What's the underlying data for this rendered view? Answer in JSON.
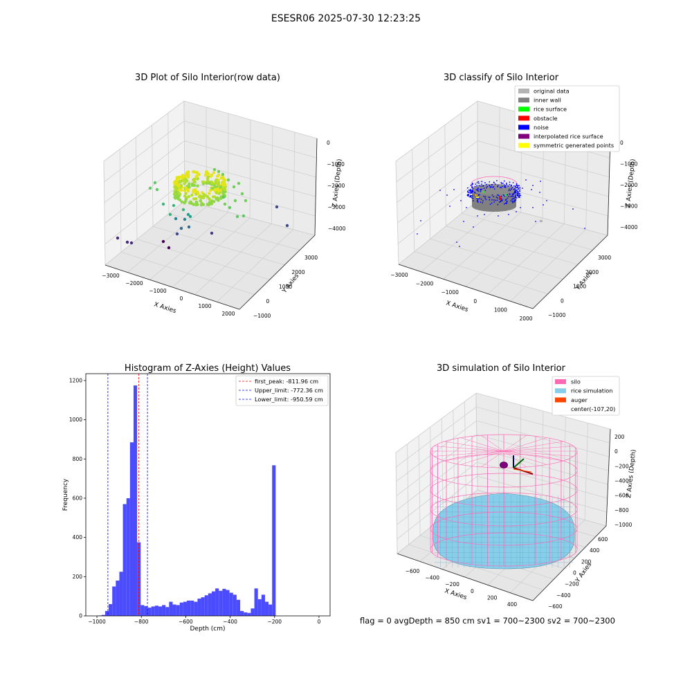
{
  "figure_title": "ESESR06 2025-07-30 12:23:25",
  "footer_text": "flag = 0     avgDepth = 850 cm  sv1 = 700~2300  sv2 = 700~2300",
  "colors": {
    "histogram_bar": "#4c4cff",
    "first_peak_line": "#ff0000",
    "limit_line": "#0000ff",
    "original_data": "#b3b3b3",
    "inner_wall": "#808080",
    "rice_surface": "#00ff00",
    "obstacle": "#ff0000",
    "noise": "#0000ff",
    "interpolated_rice_surface": "#800080",
    "symmetric_generated_points": "#ffff00",
    "silo": "#ff69b4",
    "rice_simulation": "#87ceeb",
    "auger": "#ff4500"
  },
  "chart_data": [
    {
      "type": "scatter",
      "projection": "3d",
      "title": "3D Plot of Silo Interior(row data)",
      "xlabel": "X Axies",
      "ylabel": "Y Axies",
      "zlabel": "Z Axies (Depth)",
      "xticks": [
        "−3000",
        "−2000",
        "−1000",
        "0",
        "1000",
        "2000"
      ],
      "yticks": [
        "−1000",
        "0",
        "1000",
        "2000",
        "3000"
      ],
      "zticks": [
        "0",
        "−1000",
        "−2000",
        "−3000",
        "−4000"
      ],
      "xlim": [
        -3200,
        2200
      ],
      "ylim": [
        -1200,
        3600
      ],
      "zlim": [
        -4300,
        100
      ],
      "grid": true,
      "colormap": "viridis (colored by depth)"
    },
    {
      "type": "scatter",
      "projection": "3d",
      "title": "3D classify of Silo Interior",
      "xlabel": "X Axies",
      "ylabel": "Y Axies",
      "zlabel": "Z Axies (Depth)",
      "xticks": [
        "−3000",
        "−2000",
        "−1000",
        "0",
        "1000",
        "2000"
      ],
      "yticks": [
        "−1000",
        "0",
        "1000",
        "2000",
        "3000"
      ],
      "zticks": [
        "0",
        "−1000",
        "−2000",
        "−3000",
        "−4000"
      ],
      "xlim": [
        -3200,
        2200
      ],
      "ylim": [
        -1200,
        3600
      ],
      "zlim": [
        -4300,
        100
      ],
      "grid": true,
      "legend_position": "top-right",
      "legend": [
        "original data",
        "inner wall",
        "rice surface",
        "obstacle",
        "noise",
        "interpolated rice surface",
        "symmetric generated points"
      ]
    },
    {
      "type": "bar",
      "title": "Histogram of Z-Axies (Height) Values",
      "xlabel": "Depth (cm)",
      "ylabel": "Frequency",
      "xlim": [
        -1050,
        50
      ],
      "ylim": [
        0,
        1235
      ],
      "xticks": [
        -1000,
        -800,
        -600,
        -400,
        -200,
        0
      ],
      "yticks": [
        0,
        200,
        400,
        600,
        800,
        1000,
        1200
      ],
      "bin_width": 16,
      "bin_starts": [
        -995,
        -979,
        -963,
        -947,
        -931,
        -915,
        -899,
        -883,
        -867,
        -851,
        -835,
        -819,
        -803,
        -787,
        -771,
        -755,
        -739,
        -723,
        -707,
        -691,
        -675,
        -659,
        -643,
        -627,
        -611,
        -595,
        -579,
        -563,
        -547,
        -531,
        -515,
        -499,
        -483,
        -467,
        -451,
        -435,
        -419,
        -403,
        -387,
        -371,
        -355,
        -339,
        -323,
        -307,
        -291,
        -275,
        -259,
        -243,
        -227,
        -211,
        -195,
        -179,
        -163,
        -147,
        -131,
        -115,
        -99,
        -83,
        -67,
        -51,
        -35,
        -19,
        -3
      ],
      "values": [
        2,
        5,
        25,
        60,
        150,
        180,
        225,
        570,
        600,
        885,
        1175,
        375,
        55,
        50,
        42,
        48,
        52,
        48,
        55,
        45,
        72,
        58,
        55,
        68,
        72,
        78,
        78,
        72,
        88,
        95,
        105,
        115,
        125,
        140,
        128,
        138,
        132,
        118,
        108,
        82,
        25,
        18,
        15,
        38,
        140,
        85,
        108,
        72,
        58,
        768,
        0,
        0,
        0,
        0,
        0,
        0,
        0,
        0,
        0,
        0,
        0,
        0,
        0
      ],
      "vlines": [
        {
          "x": -811.96,
          "style": "dashed",
          "color": "#ff0000",
          "label": "first_peak: -811.96 cm"
        },
        {
          "x": -772.36,
          "style": "dashed",
          "color": "#0000ff",
          "label": "Upper_limit: -772.36 cm"
        },
        {
          "x": -950.59,
          "style": "dashed",
          "color": "#0000ff",
          "label": "Lower_limit: -950.59 cm"
        }
      ],
      "legend_position": "top-right"
    },
    {
      "type": "surface",
      "projection": "3d",
      "title": "3D simulation of Silo Interior",
      "xlabel": "X Axies",
      "ylabel": "Y Axies",
      "zlabel": "Z Axies (Depth)",
      "xticks": [
        "−600",
        "−400",
        "−200",
        "0",
        "200",
        "400"
      ],
      "yticks": [
        "−600",
        "−400",
        "−200",
        "0",
        "200",
        "400",
        "600"
      ],
      "zticks": [
        "200",
        "0",
        "−200",
        "−400",
        "−600",
        "−800",
        "−1000"
      ],
      "grid": true,
      "legend_position": "top-right",
      "legend": [
        "silo",
        "rice simulation",
        "auger",
        "center(-107,20)"
      ]
    }
  ]
}
